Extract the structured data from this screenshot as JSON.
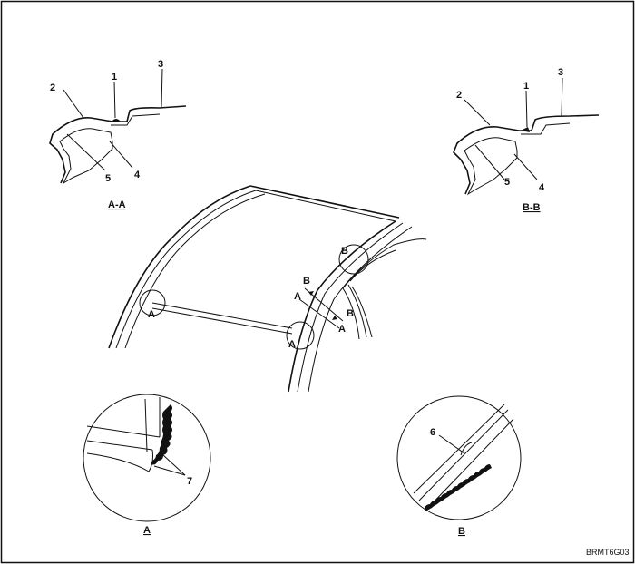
{
  "figure_code": "BRMT6G03",
  "section_aa": {
    "caption": "A-A",
    "callouts": [
      "1",
      "2",
      "3",
      "4",
      "5"
    ]
  },
  "section_bb": {
    "caption": "B-B",
    "callouts": [
      "1",
      "2",
      "3",
      "4",
      "5"
    ]
  },
  "roof_view": {
    "marks": [
      "A",
      "A",
      "B",
      "B",
      "A",
      "A",
      "B"
    ]
  },
  "detail_a": {
    "caption": "A",
    "callout": "7"
  },
  "detail_b": {
    "caption": "B",
    "callout": "6"
  }
}
